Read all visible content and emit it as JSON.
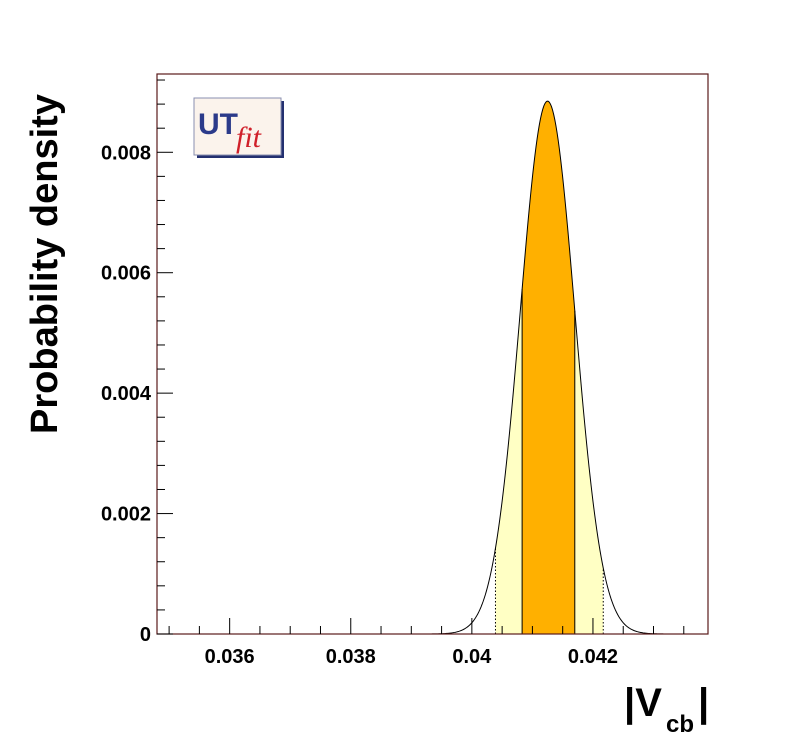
{
  "chart_data": {
    "type": "area",
    "title": "",
    "ylabel": "Probability density",
    "xlabel": {
      "main": "|V",
      "sub": "cb",
      "close": "|"
    },
    "xlim": [
      0.0348,
      0.0439
    ],
    "ylim": [
      0,
      0.0093
    ],
    "x_tick_labels": [
      "0.036",
      "0.038",
      "0.04",
      "0.042"
    ],
    "x_tick_values": [
      0.036,
      0.038,
      0.04,
      0.042
    ],
    "y_tick_labels": [
      "0",
      "0.002",
      "0.004",
      "0.006",
      "0.008"
    ],
    "y_tick_values": [
      0,
      0.002,
      0.004,
      0.006,
      0.008
    ],
    "distribution": {
      "shape": "gaussian",
      "mean": 0.04125,
      "sigma": 0.00045,
      "peak": 0.00885
    },
    "bands": {
      "inner_68": [
        0.04083,
        0.0417
      ],
      "outer_95": [
        0.04039,
        0.04217
      ]
    },
    "grid": false,
    "legend": "none"
  },
  "logo": {
    "part1": "UT",
    "part2": "fit"
  },
  "colors": {
    "inner_band": "#ffb000",
    "outer_band": "#ffffc4",
    "curve": "#000000",
    "frame": "#5a1a1a",
    "logo_ut": "#2b3a8a",
    "logo_fit": "#d0202a"
  }
}
